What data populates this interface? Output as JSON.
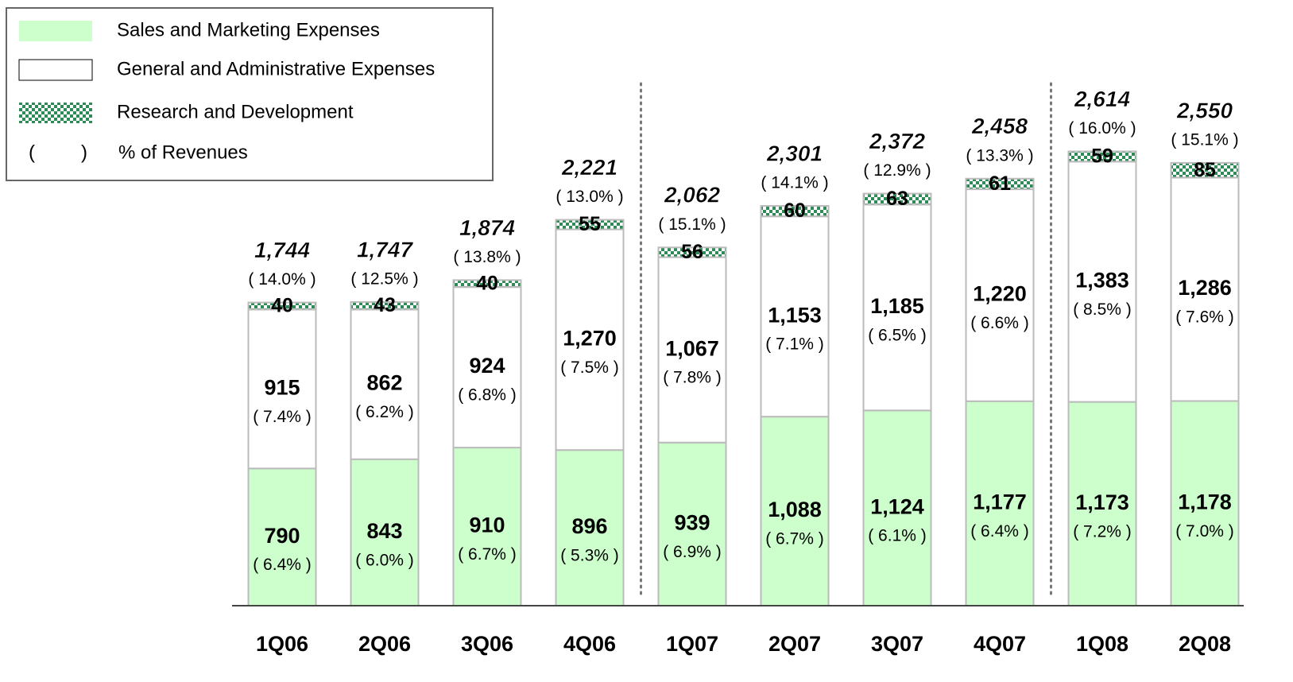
{
  "chart_data": {
    "type": "stacked_bar",
    "categories": [
      "1Q06",
      "2Q06",
      "3Q06",
      "4Q06",
      "1Q07",
      "2Q07",
      "3Q07",
      "4Q07",
      "1Q08",
      "2Q08"
    ],
    "ylim": [
      0,
      2800
    ],
    "series": [
      {
        "name": "Sales and Marketing Expenses",
        "color": "#ccffcc",
        "values": [
          790,
          843,
          910,
          896,
          939,
          1088,
          1124,
          1177,
          1173,
          1178
        ],
        "value_labels": [
          "790",
          "843",
          "910",
          "896",
          "939",
          "1,088",
          "1,124",
          "1,177",
          "1,173",
          "1,178"
        ],
        "pct_labels": [
          "( 6.4% )",
          "( 6.0% )",
          "( 6.7% )",
          "( 5.3% )",
          "( 6.9% )",
          "( 6.7% )",
          "( 6.1% )",
          "( 6.4% )",
          "( 7.2% )",
          "( 7.0% )"
        ]
      },
      {
        "name": "General and Administrative Expenses",
        "color": "#ffffff",
        "values": [
          915,
          862,
          924,
          1270,
          1067,
          1153,
          1185,
          1220,
          1383,
          1286
        ],
        "value_labels": [
          "915",
          "862",
          "924",
          "1,270",
          "1,067",
          "1,153",
          "1,185",
          "1,220",
          "1,383",
          "1,286"
        ],
        "pct_labels": [
          "( 7.4% )",
          "( 6.2% )",
          "( 6.8% )",
          "( 7.5% )",
          "( 7.8% )",
          "( 7.1% )",
          "( 6.5% )",
          "( 6.6% )",
          "( 8.5% )",
          "( 7.6% )"
        ]
      },
      {
        "name": "Research and Development",
        "color": "#2e8b57",
        "values": [
          40,
          43,
          40,
          55,
          56,
          60,
          63,
          61,
          59,
          85
        ]
      }
    ],
    "totals": {
      "values": [
        1744,
        1747,
        1874,
        2221,
        2062,
        2301,
        2372,
        2458,
        2614,
        2550
      ],
      "value_labels": [
        "1,744",
        "1,747",
        "1,874",
        "2,221",
        "2,062",
        "2,301",
        "2,372",
        "2,458",
        "2,614",
        "2,550"
      ],
      "pct_labels": [
        "( 14.0% )",
        "( 12.5% )",
        "( 13.8% )",
        "( 13.0% )",
        "( 15.1% )",
        "( 14.1% )",
        "( 12.9% )",
        "( 13.3% )",
        "( 16.0% )",
        "( 15.1% )"
      ]
    },
    "legend_note": {
      "symbol_open": "(",
      "symbol_close": ")",
      "text": "% of Revenues"
    }
  }
}
